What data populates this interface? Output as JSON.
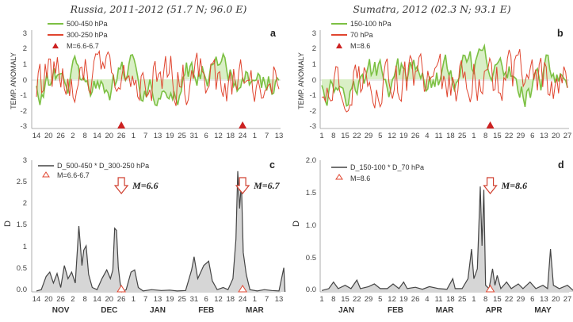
{
  "colors": {
    "green": "#7cc043",
    "red": "#e0452f",
    "fill_green": "#d9efc6",
    "dark": "#444444",
    "fill_grey": "#d6d6d6",
    "marker": "#cc2222"
  },
  "chart_data": [
    {
      "id": "a",
      "type": "line",
      "label": "a",
      "title": "Russia, 2011-2012 (51.7 N; 96.0 E)",
      "ylabel": "TEMP. ANOMALY",
      "ylim": [
        -3,
        3
      ],
      "yticks": [
        "3",
        "2",
        "1",
        "0",
        "-1",
        "-2",
        "-3"
      ],
      "xticks": [
        "14",
        "20",
        "26",
        "2",
        "8",
        "14",
        "20",
        "26",
        "1",
        "7",
        "13",
        "19",
        "25",
        "31",
        "6",
        "12",
        "18",
        "24",
        "1",
        "7",
        "13"
      ],
      "series": [
        {
          "name": "500-450 hPa",
          "color": "green"
        },
        {
          "name": "300-250 hPa",
          "color": "red"
        }
      ],
      "marker_legend": "M=6.6-6.7",
      "event_ticks": [
        7,
        17
      ]
    },
    {
      "id": "b",
      "type": "line",
      "label": "b",
      "title": "Sumatra, 2012 (02.3 N; 93.1 E)",
      "ylabel": "TEMP. ANOMALY",
      "ylim": [
        -3,
        3
      ],
      "yticks": [
        "3",
        "2",
        "1",
        "0",
        "-1",
        "-2",
        "-3"
      ],
      "xticks": [
        "1",
        "8",
        "15",
        "22",
        "29",
        "5",
        "12",
        "19",
        "26",
        "4",
        "11",
        "18",
        "25",
        "1",
        "8",
        "15",
        "22",
        "29",
        "6",
        "13",
        "20",
        "27"
      ],
      "series": [
        {
          "name": "150-100 hPa",
          "color": "green"
        },
        {
          "name": "70 hPa",
          "color": "red"
        }
      ],
      "marker_legend": "M=8.6",
      "event_ticks": [
        14.4
      ]
    },
    {
      "id": "c",
      "type": "area",
      "label": "c",
      "ylabel": "D",
      "ylim": [
        0,
        3
      ],
      "yticks": [
        "3",
        "2.5",
        "2",
        "1.5",
        "1",
        "0.5",
        "0.0"
      ],
      "xticks": [
        "14",
        "20",
        "26",
        "2",
        "8",
        "14",
        "20",
        "26",
        "1",
        "7",
        "13",
        "19",
        "25",
        "31",
        "6",
        "12",
        "18",
        "24",
        "1",
        "7",
        "13"
      ],
      "series": [
        {
          "name": "D_500-450 * D_300-250 hPa",
          "color": "dark"
        }
      ],
      "marker_legend": "M=6.6-6.7",
      "annotations": [
        {
          "text": "M=6.6",
          "tick": 7
        },
        {
          "text": "M=6.7",
          "tick": 17
        }
      ],
      "months": [
        "NOV",
        "DEC",
        "JAN",
        "FEB",
        "MAR"
      ],
      "peaks": [
        [
          0,
          0.02
        ],
        [
          0.4,
          0.05
        ],
        [
          0.8,
          0.35
        ],
        [
          1.1,
          0.45
        ],
        [
          1.4,
          0.2
        ],
        [
          1.7,
          0.42
        ],
        [
          2.0,
          0.1
        ],
        [
          2.3,
          0.6
        ],
        [
          2.6,
          0.3
        ],
        [
          2.9,
          0.45
        ],
        [
          3.2,
          0.2
        ],
        [
          3.5,
          1.5
        ],
        [
          3.75,
          0.6
        ],
        [
          3.9,
          0.95
        ],
        [
          4.1,
          1.05
        ],
        [
          4.3,
          0.4
        ],
        [
          4.6,
          0.1
        ],
        [
          5.0,
          0.05
        ],
        [
          5.4,
          0.3
        ],
        [
          5.8,
          0.5
        ],
        [
          6.1,
          0.3
        ],
        [
          6.3,
          0.5
        ],
        [
          6.45,
          1.45
        ],
        [
          6.6,
          1.4
        ],
        [
          6.75,
          0.55
        ],
        [
          6.9,
          0.2
        ],
        [
          7.05,
          0.0
        ],
        [
          7.4,
          0.05
        ],
        [
          7.8,
          0.45
        ],
        [
          8.1,
          0.5
        ],
        [
          8.4,
          0.1
        ],
        [
          8.8,
          0.02
        ],
        [
          9.5,
          0.05
        ],
        [
          10.3,
          0.03
        ],
        [
          11.0,
          0.04
        ],
        [
          11.6,
          0.02
        ],
        [
          12.3,
          0.03
        ],
        [
          12.8,
          0.5
        ],
        [
          13.0,
          0.8
        ],
        [
          13.3,
          0.3
        ],
        [
          13.8,
          0.6
        ],
        [
          14.2,
          0.7
        ],
        [
          14.5,
          0.25
        ],
        [
          14.9,
          0.05
        ],
        [
          15.4,
          0.1
        ],
        [
          15.8,
          0.05
        ],
        [
          16.2,
          0.3
        ],
        [
          16.45,
          1.2
        ],
        [
          16.6,
          2.75
        ],
        [
          16.75,
          1.9
        ],
        [
          16.9,
          2.5
        ],
        [
          17.05,
          0.9
        ],
        [
          17.3,
          0.4
        ],
        [
          17.6,
          0.05
        ],
        [
          18.2,
          0.02
        ],
        [
          18.8,
          0.05
        ],
        [
          19.4,
          0.03
        ],
        [
          20.0,
          0.02
        ],
        [
          20.4,
          0.55
        ],
        [
          20.5,
          0.0
        ]
      ]
    },
    {
      "id": "d",
      "type": "area",
      "label": "d",
      "ylabel": "D",
      "ylim": [
        0,
        2
      ],
      "yticks": [
        "2.0",
        "1.5",
        "1.0",
        "0.5",
        "0.0"
      ],
      "xticks": [
        "1",
        "8",
        "15",
        "22",
        "29",
        "5",
        "12",
        "19",
        "26",
        "4",
        "11",
        "18",
        "25",
        "1",
        "8",
        "15",
        "22",
        "29",
        "6",
        "13",
        "20",
        "27"
      ],
      "series": [
        {
          "name": "D_150-100 * D_70 hPa",
          "color": "dark"
        }
      ],
      "marker_legend": "M=8.6",
      "annotations": [
        {
          "text": "M=8.6",
          "tick": 14.4
        }
      ],
      "months": [
        "JAN",
        "FEB",
        "MAR",
        "APR",
        "MAY"
      ],
      "peaks": [
        [
          0,
          0.02
        ],
        [
          0.6,
          0.05
        ],
        [
          1.0,
          0.15
        ],
        [
          1.4,
          0.05
        ],
        [
          2.0,
          0.1
        ],
        [
          2.5,
          0.05
        ],
        [
          3.0,
          0.18
        ],
        [
          3.3,
          0.05
        ],
        [
          4.0,
          0.08
        ],
        [
          4.5,
          0.12
        ],
        [
          5.0,
          0.05
        ],
        [
          5.6,
          0.05
        ],
        [
          6.1,
          0.12
        ],
        [
          6.6,
          0.05
        ],
        [
          7.0,
          0.15
        ],
        [
          7.3,
          0.05
        ],
        [
          8.0,
          0.07
        ],
        [
          8.6,
          0.04
        ],
        [
          9.2,
          0.08
        ],
        [
          10.0,
          0.05
        ],
        [
          10.7,
          0.04
        ],
        [
          11.2,
          0.2
        ],
        [
          11.4,
          0.05
        ],
        [
          12.0,
          0.05
        ],
        [
          12.5,
          0.2
        ],
        [
          12.8,
          0.65
        ],
        [
          13.0,
          0.2
        ],
        [
          13.3,
          0.35
        ],
        [
          13.55,
          1.6
        ],
        [
          13.7,
          0.7
        ],
        [
          13.85,
          1.55
        ],
        [
          14.0,
          0.1
        ],
        [
          14.3,
          0.05
        ],
        [
          14.6,
          0.35
        ],
        [
          14.8,
          0.1
        ],
        [
          15.0,
          0.25
        ],
        [
          15.3,
          0.05
        ],
        [
          15.8,
          0.15
        ],
        [
          16.2,
          0.05
        ],
        [
          16.8,
          0.12
        ],
        [
          17.2,
          0.05
        ],
        [
          17.8,
          0.15
        ],
        [
          18.3,
          0.05
        ],
        [
          18.9,
          0.1
        ],
        [
          19.3,
          0.05
        ],
        [
          19.55,
          0.65
        ],
        [
          19.8,
          0.1
        ],
        [
          20.3,
          0.05
        ],
        [
          21.0,
          0.1
        ],
        [
          21.5,
          0.02
        ]
      ]
    }
  ]
}
